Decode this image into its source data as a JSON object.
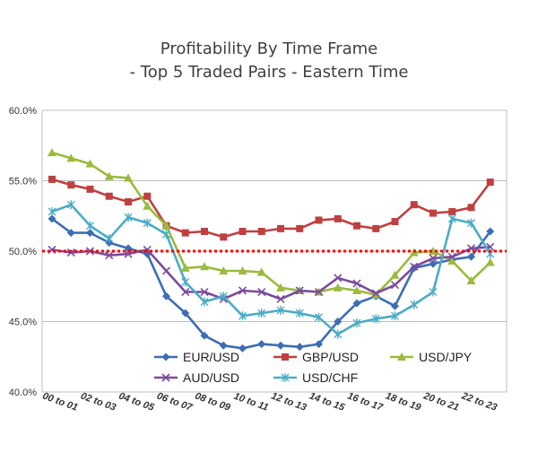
{
  "chart_data": {
    "type": "line",
    "title": "Profitability By Time Frame",
    "subtitle": "- Top 5 Traded Pairs - Eastern Time",
    "xlabel": "",
    "ylabel": "",
    "ylim": [
      40,
      60
    ],
    "y_ticks": [
      "40.0%",
      "45.0%",
      "50.0%",
      "55.0%",
      "60.0%"
    ],
    "y_tick_values": [
      40,
      45,
      50,
      55,
      60
    ],
    "x_points": 24,
    "x_tick_labels": [
      "00 to 01",
      "02 to 03",
      "04 to 05",
      "06 to 07",
      "08 to 09",
      "10 to 11",
      "12 to 13",
      "14 to 15",
      "16 to 17",
      "18 to 19",
      "20 to 21",
      "22 to 23"
    ],
    "x_tick_indices": [
      1,
      3,
      5,
      7,
      9,
      11,
      13,
      15,
      17,
      19,
      21,
      23
    ],
    "reference_line": {
      "value": 50,
      "color": "#ff0000",
      "style": "dotted"
    },
    "grid": "horizontal",
    "legend_position": "bottom-center",
    "series": [
      {
        "name": "EUR/USD",
        "color": "#3d6db4",
        "marker": "diamond",
        "values": [
          52.3,
          51.3,
          51.3,
          50.6,
          50.2,
          49.8,
          46.8,
          45.6,
          44.0,
          43.3,
          43.1,
          43.4,
          43.3,
          43.2,
          43.4,
          45.0,
          46.3,
          46.8,
          46.1,
          48.8,
          49.1,
          49.4,
          49.6,
          51.4
        ]
      },
      {
        "name": "GBP/USD",
        "color": "#bf4040",
        "marker": "square",
        "values": [
          55.1,
          54.7,
          54.4,
          53.9,
          53.5,
          53.9,
          51.8,
          51.3,
          51.4,
          51.0,
          51.4,
          51.4,
          51.6,
          51.6,
          52.2,
          52.3,
          51.8,
          51.6,
          52.1,
          53.3,
          52.7,
          52.8,
          53.1,
          54.9
        ]
      },
      {
        "name": "USD/JPY",
        "color": "#9bbb3c",
        "marker": "triangle",
        "values": [
          57.0,
          56.6,
          56.2,
          55.3,
          55.2,
          53.2,
          51.8,
          48.8,
          48.9,
          48.6,
          48.6,
          48.5,
          47.4,
          47.2,
          47.1,
          47.4,
          47.2,
          46.9,
          48.3,
          49.9,
          50.0,
          49.3,
          47.9,
          49.2
        ]
      },
      {
        "name": "AUD/USD",
        "color": "#7a4b9e",
        "marker": "x",
        "values": [
          50.1,
          49.9,
          50.0,
          49.7,
          49.8,
          50.1,
          48.6,
          47.1,
          47.1,
          46.6,
          47.2,
          47.1,
          46.6,
          47.2,
          47.1,
          48.1,
          47.7,
          47.0,
          47.6,
          48.9,
          49.5,
          49.6,
          50.2,
          50.3
        ]
      },
      {
        "name": "USD/CHF",
        "color": "#4bacc6",
        "marker": "star",
        "values": [
          52.8,
          53.3,
          51.8,
          50.9,
          52.4,
          52.0,
          51.2,
          47.8,
          46.4,
          46.8,
          45.4,
          45.6,
          45.8,
          45.6,
          45.3,
          44.1,
          44.9,
          45.2,
          45.4,
          46.2,
          47.1,
          52.3,
          52.0,
          49.8
        ]
      }
    ]
  }
}
